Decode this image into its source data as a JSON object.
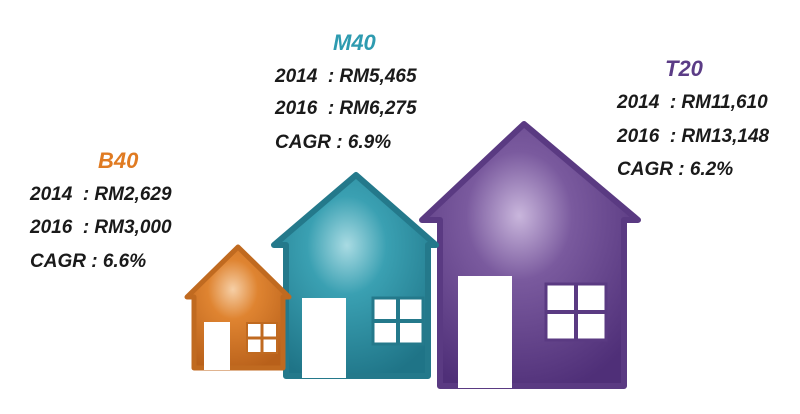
{
  "groups": [
    {
      "name": "B40",
      "lines": [
        "2014  : RM2,629",
        "2016  : RM3,000",
        "CAGR : 6.6%"
      ]
    },
    {
      "name": "M40",
      "lines": [
        "2014  : RM5,465",
        "2016  : RM6,275",
        "CAGR : 6.9%"
      ]
    },
    {
      "name": "T20",
      "lines": [
        "2014  : RM11,610",
        "2016  : RM13,148",
        "CAGR : 6.2%"
      ]
    }
  ]
}
